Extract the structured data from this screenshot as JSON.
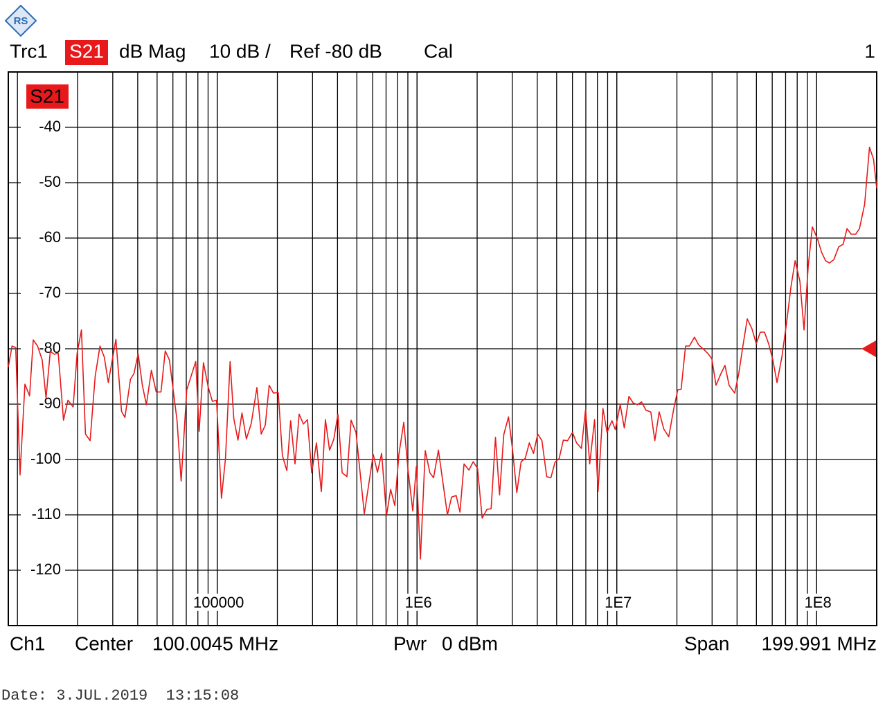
{
  "header": {
    "trace": "Trc1",
    "format": "dB Mag",
    "scale": "10 dB /",
    "reference": "Ref -80 dB",
    "cal": "Cal",
    "channel_number": "1"
  },
  "footer": {
    "channel": "Ch1",
    "center_label": "Center",
    "center_value": "100.0045 MHz",
    "power_label": "Pwr",
    "power_value": "0 dBm",
    "span_label": "Span",
    "span_value": "199.991 MHz",
    "date": "Date: 3.JUL.2019  13:15:08"
  },
  "chart_data": {
    "type": "line",
    "xscale": "log",
    "grid": true,
    "minor_grid": true,
    "xlim": [
      9000,
      200000000
    ],
    "ylim": [
      -130,
      -30
    ],
    "xticks": [
      100000,
      {
        "value": 1000000,
        "label": "1E6"
      },
      {
        "value": 10000000,
        "label": "1E7"
      },
      {
        "value": 100000000,
        "label": "1E8"
      }
    ],
    "yticks": [
      -40,
      -50,
      -60,
      -70,
      -80,
      -90,
      -100,
      -110,
      -120
    ],
    "reference_level": -80,
    "x": [
      9000,
      9400,
      9800,
      10300,
      10900,
      11500,
      12000,
      12600,
      13300,
      13900,
      14600,
      15300,
      16000,
      17000,
      17900,
      19000,
      19900,
      20900,
      21900,
      23100,
      24500,
      25900,
      27200,
      28500,
      31100,
      33200,
      34500,
      36800,
      38300,
      40200,
      42200,
      44200,
      46800,
      49500,
      52300,
      54900,
      57600,
      62900,
      66000,
      70400,
      78100,
      81200,
      85300,
      90200,
      94600,
      99200,
      105000,
      110000,
      116000,
      121000,
      127000,
      133000,
      140000,
      148000,
      158000,
      166000,
      174000,
      182000,
      191000,
      202000,
      212000,
      223000,
      233000,
      245000,
      257000,
      270000,
      283000,
      297000,
      314000,
      332000,
      348000,
      365000,
      383000,
      402000,
      422000,
      446000,
      468000,
      495000,
      545000,
      604000,
      634000,
      665000,
      704000,
      738000,
      774000,
      812000,
      859000,
      902000,
      953000,
      992000,
      1040000,
      1100000,
      1160000,
      1210000,
      1280000,
      1420000,
      1490000,
      1570000,
      1640000,
      1720000,
      1820000,
      1910000,
      2010000,
      2120000,
      2240000,
      2350000,
      2470000,
      2590000,
      2720000,
      2870000,
      3010000,
      3160000,
      3320000,
      3480000,
      3650000,
      3830000,
      4020000,
      4220000,
      4460000,
      4680000,
      4910000,
      5150000,
      5400000,
      5670000,
      6000000,
      6290000,
      6650000,
      6980000,
      7320000,
      7740000,
      8060000,
      8530000,
      8940000,
      9460000,
      9840000,
      10400000,
      10900000,
      11500000,
      12100000,
      12700000,
      13300000,
      14000000,
      14800000,
      15500000,
      16300000,
      17200000,
      18200000,
      19300000,
      20200000,
      21000000,
      22100000,
      23100000,
      24500000,
      25700000,
      27200000,
      28500000,
      29900000,
      31400000,
      33200000,
      34800000,
      36500000,
      38900000,
      40800000,
      42800000,
      45000000,
      47500000,
      49900000,
      52300000,
      54900000,
      57600000,
      60400000,
      63400000,
      67100000,
      70900000,
      74400000,
      78100000,
      82500000,
      86600000,
      90800000,
      95300000,
      101000000,
      106000000,
      111000000,
      116000000,
      122000000,
      129000000,
      136000000,
      142000000,
      149000000,
      157000000,
      164000000,
      174000000,
      184000000,
      193000000,
      200000000
    ],
    "series": [
      {
        "name": "S21",
        "color": "#e8191b",
        "values": [
          -83.3,
          -79.5,
          -79.8,
          -102.8,
          -86.4,
          -88.5,
          -78.4,
          -79.5,
          -82,
          -88.9,
          -80.5,
          -81,
          -80.8,
          -92.9,
          -89.3,
          -90.5,
          -80.8,
          -76.6,
          -95.4,
          -96.6,
          -84.9,
          -79.5,
          -81.5,
          -86.1,
          -78.3,
          -91.3,
          -92.4,
          -85.5,
          -84.5,
          -80.9,
          -86.6,
          -90.1,
          -83.9,
          -87.8,
          -87.8,
          -80.4,
          -82,
          -92.9,
          -103.9,
          -87.4,
          -82.3,
          -94.9,
          -82.5,
          -87,
          -89.5,
          -89.3,
          -107,
          -99.8,
          -82.3,
          -92.6,
          -96.5,
          -91.6,
          -96.3,
          -93.5,
          -87,
          -95.4,
          -93.8,
          -86.6,
          -88,
          -87.9,
          -99.3,
          -102,
          -93,
          -100.8,
          -91.8,
          -93.6,
          -92.8,
          -102.4,
          -97,
          -105.8,
          -92.8,
          -98.3,
          -96.4,
          -91.8,
          -102.4,
          -103.1,
          -92.9,
          -95.1,
          -109.8,
          -99.1,
          -102.3,
          -98.9,
          -110.1,
          -105.4,
          -108.3,
          -99,
          -93.3,
          -102,
          -109.3,
          -101.3,
          -118,
          -98.4,
          -102.4,
          -103.3,
          -98.3,
          -110,
          -106.8,
          -106.5,
          -109.5,
          -100.8,
          -101.9,
          -100.4,
          -101.6,
          -110.6,
          -109,
          -108.9,
          -96,
          -106.4,
          -95.5,
          -92.3,
          -98.3,
          -106,
          -100.4,
          -99.8,
          -97,
          -98.9,
          -95.4,
          -96.6,
          -103.1,
          -103.3,
          -100.5,
          -99.8,
          -96.5,
          -96.6,
          -95.1,
          -97,
          -98,
          -91,
          -100.8,
          -92.8,
          -105.8,
          -90.8,
          -95.1,
          -93,
          -94.6,
          -90.1,
          -94.3,
          -88.6,
          -89.8,
          -90.1,
          -89.6,
          -91.1,
          -91.4,
          -96.6,
          -91.4,
          -94.5,
          -95.9,
          -90.8,
          -87.4,
          -87.3,
          -79.5,
          -79.5,
          -77.9,
          -79.3,
          -80.1,
          -80.8,
          -81.8,
          -86.6,
          -84.5,
          -83,
          -86.6,
          -88,
          -84.5,
          -79.5,
          -74.6,
          -76.4,
          -79.1,
          -77,
          -77,
          -79.1,
          -82,
          -86.1,
          -81.4,
          -75.1,
          -68.9,
          -64.1,
          -67.8,
          -76.6,
          -65.1,
          -58,
          -60.1,
          -62.6,
          -64.1,
          -64.5,
          -63.9,
          -61.6,
          -61.1,
          -58.3,
          -59.3,
          -59.3,
          -58.3,
          -53.9,
          -43.6,
          -45.8,
          -51
        ]
      }
    ]
  }
}
